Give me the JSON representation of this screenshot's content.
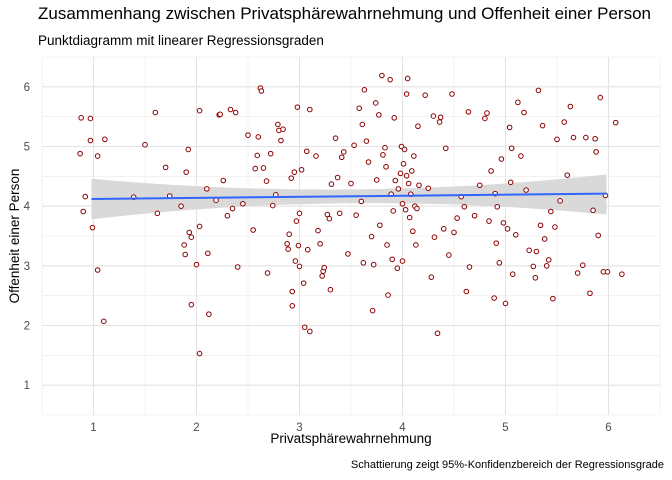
{
  "chart_data": {
    "type": "scatter",
    "title": "Zusammenhang zwischen Privatsphärewahrnehmung und Offenheit einer Person",
    "subtitle": "Punktdiagramm mit linearer Regressionsgraden",
    "caption": "Schattierung zeigt 95%-Konfidenzbereich der Regressionsgrade",
    "xlabel": "Privatsphärewahrnehmung",
    "ylabel": "Offenheit einer Person",
    "xlim": [
      0.5,
      6.5
    ],
    "ylim": [
      0.5,
      6.5
    ],
    "x_ticks": [
      "1",
      "2",
      "3",
      "4",
      "5",
      "6"
    ],
    "y_ticks": [
      "1",
      "2",
      "3",
      "4",
      "5",
      "6"
    ],
    "grid": true,
    "point_stroke_color": "#8B0000",
    "point_fill_color": "#ffffff",
    "regression_line_color": "#3366FF",
    "confidence_band_color": "#d9d9d9",
    "regression": {
      "x_range": [
        0.98,
        5.98
      ],
      "y_start": 4.12,
      "y_end": 4.21,
      "band_start": [
        3.78,
        4.46
      ],
      "band_mid": [
        4.05,
        4.28
      ],
      "band_end": [
        3.86,
        4.53
      ]
    },
    "points": [
      [
        0.88,
        5.48
      ],
      [
        0.97,
        5.47
      ],
      [
        0.87,
        4.88
      ],
      [
        0.97,
        5.1
      ],
      [
        0.92,
        4.16
      ],
      [
        0.9,
        3.91
      ],
      [
        0.99,
        3.64
      ],
      [
        1.04,
        4.84
      ],
      [
        1.11,
        5.12
      ],
      [
        1.04,
        2.93
      ],
      [
        1.1,
        2.07
      ],
      [
        1.39,
        4.15
      ],
      [
        1.5,
        5.03
      ],
      [
        1.6,
        5.57
      ],
      [
        1.62,
        3.88
      ],
      [
        1.7,
        4.65
      ],
      [
        1.74,
        4.17
      ],
      [
        1.85,
        4.0
      ],
      [
        1.88,
        3.35
      ],
      [
        1.89,
        3.19
      ],
      [
        1.9,
        4.57
      ],
      [
        1.92,
        4.95
      ],
      [
        1.93,
        3.56
      ],
      [
        1.95,
        3.48
      ],
      [
        1.95,
        2.35
      ],
      [
        2.0,
        3.02
      ],
      [
        2.03,
        3.66
      ],
      [
        2.03,
        5.6
      ],
      [
        2.03,
        1.53
      ],
      [
        2.1,
        4.29
      ],
      [
        2.11,
        3.21
      ],
      [
        2.12,
        2.19
      ],
      [
        2.19,
        4.1
      ],
      [
        2.22,
        5.53
      ],
      [
        2.23,
        5.54
      ],
      [
        2.26,
        4.43
      ],
      [
        2.3,
        3.84
      ],
      [
        2.33,
        5.62
      ],
      [
        2.35,
        3.96
      ],
      [
        2.38,
        5.57
      ],
      [
        2.4,
        2.98
      ],
      [
        2.45,
        4.04
      ],
      [
        2.5,
        5.19
      ],
      [
        2.55,
        3.6
      ],
      [
        2.57,
        4.63
      ],
      [
        2.59,
        4.85
      ],
      [
        2.6,
        5.16
      ],
      [
        2.62,
        5.98
      ],
      [
        2.63,
        5.93
      ],
      [
        2.65,
        4.64
      ],
      [
        2.68,
        4.42
      ],
      [
        2.69,
        2.88
      ],
      [
        2.72,
        4.88
      ],
      [
        2.74,
        4.01
      ],
      [
        2.77,
        4.19
      ],
      [
        2.79,
        5.37
      ],
      [
        2.8,
        5.27
      ],
      [
        2.82,
        5.1
      ],
      [
        2.84,
        5.29
      ],
      [
        2.88,
        3.37
      ],
      [
        2.89,
        3.28
      ],
      [
        2.9,
        3.53
      ],
      [
        2.92,
        4.47
      ],
      [
        2.93,
        2.57
      ],
      [
        2.93,
        2.33
      ],
      [
        2.95,
        4.57
      ],
      [
        2.96,
        3.08
      ],
      [
        2.97,
        3.75
      ],
      [
        2.98,
        5.66
      ],
      [
        2.99,
        3.34
      ],
      [
        3.0,
        3.88
      ],
      [
        3.0,
        2.99
      ],
      [
        3.02,
        4.61
      ],
      [
        3.04,
        2.71
      ],
      [
        3.05,
        1.97
      ],
      [
        3.07,
        4.92
      ],
      [
        3.08,
        3.27
      ],
      [
        3.1,
        1.9
      ],
      [
        3.1,
        5.62
      ],
      [
        3.16,
        4.84
      ],
      [
        3.18,
        3.59
      ],
      [
        3.2,
        3.37
      ],
      [
        3.22,
        2.83
      ],
      [
        3.23,
        2.91
      ],
      [
        3.24,
        2.97
      ],
      [
        3.27,
        3.86
      ],
      [
        3.29,
        3.79
      ],
      [
        3.3,
        2.6
      ],
      [
        3.31,
        4.37
      ],
      [
        3.35,
        5.14
      ],
      [
        3.37,
        4.48
      ],
      [
        3.39,
        3.88
      ],
      [
        3.41,
        4.82
      ],
      [
        3.43,
        4.91
      ],
      [
        3.47,
        3.2
      ],
      [
        3.5,
        4.38
      ],
      [
        3.53,
        5.02
      ],
      [
        3.55,
        3.85
      ],
      [
        3.58,
        5.64
      ],
      [
        3.6,
        4.08
      ],
      [
        3.61,
        5.37
      ],
      [
        3.62,
        3.05
      ],
      [
        3.63,
        5.95
      ],
      [
        3.65,
        5.09
      ],
      [
        3.67,
        4.74
      ],
      [
        3.7,
        3.49
      ],
      [
        3.71,
        2.25
      ],
      [
        3.72,
        3.02
      ],
      [
        3.74,
        5.73
      ],
      [
        3.75,
        4.44
      ],
      [
        3.77,
        5.53
      ],
      [
        3.78,
        3.68
      ],
      [
        3.8,
        6.19
      ],
      [
        3.81,
        4.86
      ],
      [
        3.83,
        4.98
      ],
      [
        3.84,
        4.66
      ],
      [
        3.85,
        3.35
      ],
      [
        3.86,
        2.51
      ],
      [
        3.88,
        6.12
      ],
      [
        3.89,
        4.2
      ],
      [
        3.9,
        3.11
      ],
      [
        3.91,
        3.92
      ],
      [
        3.92,
        5.48
      ],
      [
        3.93,
        4.43
      ],
      [
        3.95,
        2.96
      ],
      [
        3.96,
        4.29
      ],
      [
        3.98,
        4.55
      ],
      [
        3.99,
        5.0
      ],
      [
        4.0,
        4.04
      ],
      [
        4.0,
        3.08
      ],
      [
        4.01,
        4.71
      ],
      [
        4.02,
        4.95
      ],
      [
        4.03,
        3.94
      ],
      [
        4.04,
        5.88
      ],
      [
        4.04,
        4.51
      ],
      [
        4.05,
        6.14
      ],
      [
        4.06,
        4.38
      ],
      [
        4.07,
        3.81
      ],
      [
        4.08,
        4.2
      ],
      [
        4.09,
        4.59
      ],
      [
        4.1,
        3.58
      ],
      [
        4.11,
        4.84
      ],
      [
        4.12,
        4.0
      ],
      [
        4.13,
        3.35
      ],
      [
        4.14,
        3.96
      ],
      [
        4.15,
        5.34
      ],
      [
        4.16,
        4.35
      ],
      [
        4.22,
        5.86
      ],
      [
        4.25,
        4.3
      ],
      [
        4.28,
        2.81
      ],
      [
        4.3,
        5.51
      ],
      [
        4.31,
        3.48
      ],
      [
        4.34,
        1.87
      ],
      [
        4.36,
        5.41
      ],
      [
        4.37,
        5.49
      ],
      [
        4.4,
        3.62
      ],
      [
        4.42,
        4.97
      ],
      [
        4.45,
        3.18
      ],
      [
        4.48,
        5.88
      ],
      [
        4.5,
        3.56
      ],
      [
        4.53,
        3.8
      ],
      [
        4.57,
        4.16
      ],
      [
        4.6,
        3.99
      ],
      [
        4.62,
        2.57
      ],
      [
        4.64,
        5.58
      ],
      [
        4.65,
        2.98
      ],
      [
        4.7,
        3.84
      ],
      [
        4.75,
        4.35
      ],
      [
        4.8,
        5.47
      ],
      [
        4.82,
        5.56
      ],
      [
        4.84,
        3.75
      ],
      [
        4.86,
        4.59
      ],
      [
        4.89,
        2.46
      ],
      [
        4.9,
        4.21
      ],
      [
        4.91,
        3.38
      ],
      [
        4.92,
        3.99
      ],
      [
        4.94,
        3.05
      ],
      [
        4.96,
        4.79
      ],
      [
        4.98,
        3.72
      ],
      [
        5.0,
        2.37
      ],
      [
        5.02,
        3.62
      ],
      [
        5.04,
        5.32
      ],
      [
        5.05,
        4.4
      ],
      [
        5.06,
        4.97
      ],
      [
        5.07,
        2.86
      ],
      [
        5.1,
        3.52
      ],
      [
        5.12,
        5.74
      ],
      [
        5.15,
        4.84
      ],
      [
        5.18,
        5.57
      ],
      [
        5.2,
        4.27
      ],
      [
        5.23,
        3.26
      ],
      [
        5.27,
        2.99
      ],
      [
        5.29,
        2.8
      ],
      [
        5.3,
        3.24
      ],
      [
        5.32,
        5.94
      ],
      [
        5.34,
        3.68
      ],
      [
        5.36,
        5.35
      ],
      [
        5.38,
        3.45
      ],
      [
        5.4,
        3.0
      ],
      [
        5.42,
        3.1
      ],
      [
        5.44,
        3.91
      ],
      [
        5.46,
        2.45
      ],
      [
        5.48,
        3.65
      ],
      [
        5.5,
        5.12
      ],
      [
        5.53,
        4.09
      ],
      [
        5.57,
        5.41
      ],
      [
        5.6,
        4.52
      ],
      [
        5.63,
        5.67
      ],
      [
        5.66,
        5.15
      ],
      [
        5.7,
        2.88
      ],
      [
        5.75,
        3.01
      ],
      [
        5.78,
        5.15
      ],
      [
        5.82,
        2.54
      ],
      [
        5.85,
        3.93
      ],
      [
        5.87,
        5.13
      ],
      [
        5.88,
        4.91
      ],
      [
        5.9,
        3.51
      ],
      [
        5.92,
        5.82
      ],
      [
        5.95,
        2.9
      ],
      [
        5.97,
        4.18
      ],
      [
        5.99,
        2.9
      ],
      [
        6.07,
        5.4
      ],
      [
        6.13,
        2.86
      ]
    ]
  }
}
